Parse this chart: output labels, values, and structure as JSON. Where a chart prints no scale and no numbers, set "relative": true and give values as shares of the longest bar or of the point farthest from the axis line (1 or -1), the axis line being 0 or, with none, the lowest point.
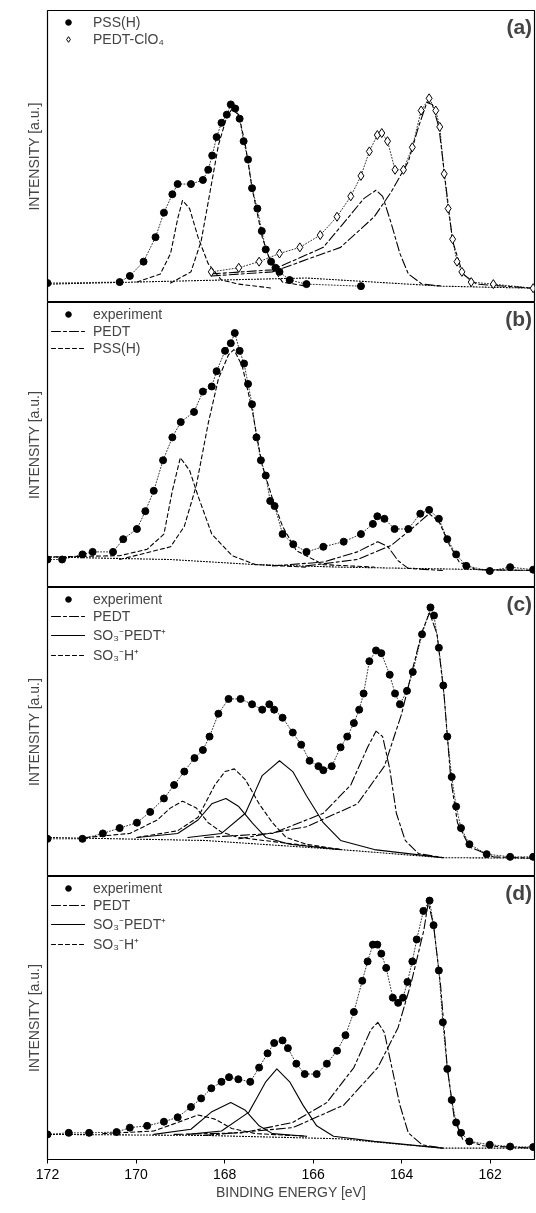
{
  "chart_data": [
    {
      "type": "line",
      "title": "(a)",
      "ylabel": "INTENSITY [a.u.]",
      "relative": true,
      "xlim": [
        172,
        161.0
      ],
      "tick_labels": false,
      "legend": "top left",
      "series": [
        {
          "name": "PSS(H)",
          "color": "#000000",
          "marker": "circle",
          "line_style": "dotted",
          "x": [
            172.0,
            170.37,
            170.14,
            169.83,
            169.56,
            169.37,
            169.18,
            169.06,
            168.76,
            168.49,
            168.37,
            168.28,
            168.18,
            168.07,
            167.95,
            167.86,
            167.76,
            167.66,
            167.57,
            167.47,
            167.38,
            167.26,
            167.16,
            167.07,
            166.95,
            166.85,
            166.76,
            166.53,
            166.15,
            164.92
          ],
          "values": [
            0.095,
            0.1,
            0.13,
            0.2,
            0.32,
            0.44,
            0.53,
            0.58,
            0.58,
            0.6,
            0.65,
            0.72,
            0.81,
            0.88,
            0.92,
            0.97,
            0.95,
            0.9,
            0.79,
            0.7,
            0.56,
            0.46,
            0.35,
            0.26,
            0.2,
            0.17,
            0.15,
            0.11,
            0.09,
            0.08
          ]
        },
        {
          "name": "PEDT-ClO₄",
          "color": "#000000",
          "marker": "diamond",
          "line_style": "dotted",
          "x": [
            168.3,
            167.68,
            167.22,
            166.76,
            166.3,
            165.84,
            165.46,
            165.15,
            164.92,
            164.73,
            164.55,
            164.45,
            164.32,
            164.15,
            163.96,
            163.76,
            163.56,
            163.38,
            163.23,
            163.14,
            163.04,
            162.95,
            162.85,
            162.75,
            162.64,
            162.43,
            161.93,
            161.03
          ],
          "values": [
            0.15,
            0.17,
            0.2,
            0.24,
            0.27,
            0.33,
            0.42,
            0.52,
            0.62,
            0.74,
            0.82,
            0.83,
            0.79,
            0.65,
            0.65,
            0.76,
            0.94,
            1.0,
            0.94,
            0.86,
            0.63,
            0.46,
            0.31,
            0.2,
            0.15,
            0.1,
            0.09,
            0.07
          ]
        },
        {
          "color": "#000000",
          "marker": "none",
          "line_style": "dashed",
          "x": [
            169.98,
            169.45,
            169.22,
            169.06,
            168.95,
            168.79,
            168.6,
            168.37,
            168.07,
            167.68,
            166.92
          ],
          "values": [
            0.1,
            0.14,
            0.24,
            0.41,
            0.5,
            0.46,
            0.32,
            0.19,
            0.11,
            0.09,
            0.07
          ]
        },
        {
          "color": "#000000",
          "marker": "none",
          "line_style": "dashed",
          "x": [
            169.22,
            168.76,
            168.53,
            168.33,
            168.14,
            167.95,
            167.84,
            167.68,
            167.53,
            167.38,
            167.15,
            166.92,
            166.69,
            166.15
          ],
          "values": [
            0.095,
            0.15,
            0.3,
            0.54,
            0.77,
            0.91,
            0.945,
            0.92,
            0.77,
            0.56,
            0.32,
            0.17,
            0.1,
            0.08
          ]
        },
        {
          "color": "#000000",
          "marker": "none",
          "line_style": "dashdot",
          "x": [
            168.3,
            166.92,
            165.77,
            165.23,
            164.85,
            164.58,
            164.43,
            164.24,
            164.04,
            163.85,
            163.54,
            163.08
          ],
          "values": [
            0.14,
            0.16,
            0.27,
            0.41,
            0.51,
            0.55,
            0.52,
            0.39,
            0.24,
            0.14,
            0.09,
            0.08
          ]
        },
        {
          "color": "#000000",
          "marker": "none",
          "line_style": "dashdot",
          "x": [
            168.3,
            166.92,
            165.38,
            164.62,
            164.24,
            163.85,
            163.62,
            163.43,
            163.31,
            163.16,
            163.0,
            162.85,
            162.62,
            162.31,
            161.03
          ],
          "values": [
            0.13,
            0.15,
            0.27,
            0.42,
            0.54,
            0.69,
            0.86,
            0.98,
            0.97,
            0.86,
            0.57,
            0.3,
            0.14,
            0.09,
            0.07
          ]
        },
        {
          "color": "#000000",
          "marker": "none",
          "line_style": "dotted",
          "x": [
            172.0,
            166.15,
            163.08,
            161.03
          ],
          "values": [
            0.09,
            0.12,
            0.08,
            0.07
          ]
        }
      ]
    },
    {
      "type": "line",
      "title": "(b)",
      "ylabel": "INTENSITY [a.u.]",
      "relative": true,
      "xlim": [
        172,
        161.0
      ],
      "tick_labels": false,
      "legend": "top left",
      "series": [
        {
          "name": "experiment",
          "color": "#000000",
          "marker": "circle",
          "line_style": "dotted",
          "x": [
            172.0,
            171.67,
            171.21,
            170.98,
            170.52,
            170.29,
            169.98,
            169.79,
            169.6,
            169.39,
            169.18,
            168.99,
            168.69,
            168.49,
            168.29,
            168.18,
            167.99,
            167.86,
            167.77,
            167.66,
            167.56,
            167.47,
            167.38,
            167.28,
            167.18,
            167.07,
            166.97,
            166.87,
            166.69,
            166.45,
            166.15,
            165.77,
            165.31,
            164.92,
            164.65,
            164.55,
            164.39,
            164.16,
            163.85,
            163.58,
            163.38,
            163.16,
            162.97,
            162.77,
            162.54,
            162.01,
            161.55,
            161.03
          ],
          "values": [
            0.11,
            0.11,
            0.13,
            0.14,
            0.14,
            0.19,
            0.23,
            0.3,
            0.38,
            0.5,
            0.59,
            0.65,
            0.69,
            0.77,
            0.79,
            0.85,
            0.93,
            0.96,
            1.0,
            0.93,
            0.88,
            0.8,
            0.72,
            0.59,
            0.5,
            0.44,
            0.34,
            0.32,
            0.21,
            0.17,
            0.14,
            0.16,
            0.18,
            0.21,
            0.25,
            0.28,
            0.27,
            0.23,
            0.23,
            0.29,
            0.305,
            0.27,
            0.19,
            0.13,
            0.085,
            0.065,
            0.08,
            0.07
          ]
        },
        {
          "name": "PEDT",
          "color": "#000000",
          "marker": "none",
          "line_style": "dashdot",
          "x": [
            166.92,
            165.77,
            165.0,
            164.54,
            164.31,
            164.08,
            163.85,
            163.08
          ],
          "values": [
            0.085,
            0.1,
            0.14,
            0.18,
            0.16,
            0.105,
            0.075,
            0.067
          ]
        },
        {
          "name": "PSS(H)",
          "color": "#000000",
          "marker": "none",
          "line_style": "dashed",
          "x": [
            172.0,
            170.37,
            169.75,
            169.37,
            169.18,
            169.0,
            168.79,
            168.6,
            168.29,
            167.83,
            167.3,
            166.15
          ],
          "values": [
            0.12,
            0.125,
            0.15,
            0.21,
            0.38,
            0.51,
            0.46,
            0.36,
            0.21,
            0.125,
            0.09,
            0.08
          ]
        },
        {
          "color": "#000000",
          "marker": "none",
          "line_style": "dashed",
          "x": [
            170.37,
            169.22,
            168.91,
            168.64,
            168.37,
            168.14,
            167.91,
            167.79,
            167.6,
            167.38,
            167.15,
            166.92,
            166.69,
            166.38,
            165.77,
            164.62
          ],
          "values": [
            0.11,
            0.16,
            0.24,
            0.4,
            0.645,
            0.82,
            0.915,
            0.935,
            0.87,
            0.7,
            0.48,
            0.35,
            0.24,
            0.145,
            0.09,
            0.08
          ]
        },
        {
          "color": "#000000",
          "marker": "none",
          "line_style": "dashdot",
          "x": [
            166.15,
            165.0,
            164.24,
            163.78,
            163.38,
            163.16,
            162.93,
            162.7,
            162.31,
            161.03
          ],
          "values": [
            0.085,
            0.11,
            0.165,
            0.23,
            0.29,
            0.26,
            0.17,
            0.1,
            0.07,
            0.067
          ]
        },
        {
          "color": "#000000",
          "marker": "none",
          "line_style": "dotted",
          "x": [
            172.0,
            169.22,
            167.3,
            165.38,
            161.03
          ],
          "values": [
            0.12,
            0.11,
            0.09,
            0.08,
            0.067
          ]
        }
      ]
    },
    {
      "type": "line",
      "title": "(c)",
      "ylabel": "INTENSITY [a.u.]",
      "relative": true,
      "xlim": [
        172,
        161.0
      ],
      "tick_labels": false,
      "legend": "top left",
      "series": [
        {
          "name": "experiment",
          "color": "#000000",
          "marker": "circle",
          "line_style": "dotted",
          "x": [
            172.0,
            171.21,
            170.75,
            170.37,
            169.98,
            169.68,
            169.37,
            169.14,
            168.91,
            168.68,
            168.49,
            168.34,
            168.14,
            167.91,
            167.64,
            167.38,
            167.15,
            166.99,
            166.88,
            166.69,
            166.46,
            166.27,
            166.08,
            165.88,
            165.77,
            165.58,
            165.38,
            165.23,
            165.08,
            164.96,
            164.86,
            164.73,
            164.58,
            164.46,
            164.27,
            164.15,
            164.04,
            163.88,
            163.75,
            163.54,
            163.35,
            163.27,
            163.16,
            163.06,
            162.97,
            162.87,
            162.77,
            162.66,
            162.47,
            162.08,
            161.55,
            161.03
          ],
          "values": [
            0.14,
            0.14,
            0.16,
            0.18,
            0.2,
            0.24,
            0.29,
            0.34,
            0.39,
            0.44,
            0.47,
            0.52,
            0.605,
            0.66,
            0.66,
            0.64,
            0.62,
            0.64,
            0.62,
            0.59,
            0.535,
            0.49,
            0.43,
            0.41,
            0.395,
            0.41,
            0.48,
            0.52,
            0.57,
            0.62,
            0.68,
            0.8,
            0.84,
            0.83,
            0.75,
            0.68,
            0.64,
            0.69,
            0.76,
            0.9,
            1.0,
            0.97,
            0.85,
            0.71,
            0.52,
            0.37,
            0.26,
            0.18,
            0.12,
            0.083,
            0.073,
            0.073
          ]
        },
        {
          "name": "PEDT",
          "color": "#000000",
          "marker": "none",
          "line_style": "dashdot",
          "x": [
            168.45,
            166.92,
            165.77,
            165.15,
            164.77,
            164.58,
            164.43,
            164.27,
            164.12,
            163.92,
            163.62,
            163.08
          ],
          "values": [
            0.145,
            0.16,
            0.235,
            0.34,
            0.48,
            0.54,
            0.52,
            0.4,
            0.235,
            0.134,
            0.085,
            0.07
          ]
        },
        {
          "name": "SO₃⁻PEDT⁺",
          "color": "#000000",
          "marker": "none",
          "line_style": "solid",
          "x": [
            169.98,
            169.06,
            168.6,
            168.29,
            167.97,
            167.68,
            167.38,
            167.07,
            166.53,
            165.38
          ],
          "values": [
            0.145,
            0.16,
            0.21,
            0.27,
            0.29,
            0.26,
            0.2,
            0.145,
            0.12,
            0.1
          ]
        },
        {
          "name": "SO₃⁻H⁺",
          "color": "#000000",
          "marker": "none",
          "line_style": "dashed",
          "x": [
            171.13,
            170.14,
            169.52,
            169.22,
            168.95,
            168.64,
            168.37,
            168.07,
            167.68,
            166.92,
            165.38
          ],
          "values": [
            0.145,
            0.16,
            0.21,
            0.255,
            0.28,
            0.255,
            0.2,
            0.165,
            0.145,
            0.13,
            0.1
          ]
        },
        {
          "color": "#000000",
          "marker": "none",
          "line_style": "dashed",
          "x": [
            169.98,
            169.06,
            168.6,
            168.22,
            167.99,
            167.78,
            167.53,
            167.22,
            166.92,
            166.61,
            166.15,
            165.38
          ],
          "values": [
            0.145,
            0.17,
            0.22,
            0.34,
            0.39,
            0.4,
            0.36,
            0.27,
            0.2,
            0.145,
            0.12,
            0.1
          ]
        },
        {
          "color": "#000000",
          "marker": "none",
          "line_style": "solid",
          "x": [
            168.83,
            168.07,
            167.53,
            167.15,
            166.76,
            166.46,
            166.15,
            165.77,
            165.38,
            164.62,
            163.08
          ],
          "values": [
            0.145,
            0.16,
            0.235,
            0.375,
            0.43,
            0.39,
            0.3,
            0.2,
            0.134,
            0.1,
            0.07
          ]
        },
        {
          "color": "#000000",
          "marker": "none",
          "line_style": "dashdot",
          "x": [
            167.68,
            166.15,
            165.0,
            164.39,
            164.0,
            163.77,
            163.54,
            163.37,
            163.2,
            163.04,
            162.89,
            162.74,
            162.47,
            161.93,
            161.03
          ],
          "values": [
            0.14,
            0.185,
            0.27,
            0.41,
            0.605,
            0.76,
            0.91,
            0.98,
            0.9,
            0.67,
            0.36,
            0.2,
            0.11,
            0.073,
            0.068
          ]
        },
        {
          "color": "#000000",
          "marker": "none",
          "line_style": "dotted",
          "x": [
            172.0,
            168.45,
            165.38,
            163.08,
            161.03
          ],
          "values": [
            0.145,
            0.134,
            0.1,
            0.07,
            0.068
          ]
        }
      ]
    },
    {
      "type": "line",
      "title": "(d)",
      "ylabel": "INTENSITY [a.u.]",
      "xlabel": "BINDING ENERGY [eV]",
      "relative": true,
      "xlim": [
        172,
        161.0
      ],
      "xticks": [
        172,
        170,
        168,
        166,
        164,
        162
      ],
      "tick_labels": "x",
      "legend": "top left",
      "series": [
        {
          "name": "experiment",
          "color": "#000000",
          "marker": "circle",
          "line_style": "dotted",
          "x": [
            172.0,
            171.52,
            171.06,
            170.44,
            170.14,
            169.75,
            169.37,
            169.06,
            168.76,
            168.53,
            168.3,
            168.07,
            167.9,
            167.69,
            167.42,
            167.22,
            167.03,
            166.88,
            166.69,
            166.57,
            166.38,
            166.19,
            165.92,
            165.69,
            165.46,
            165.27,
            165.08,
            164.89,
            164.77,
            164.65,
            164.55,
            164.46,
            164.35,
            164.2,
            164.08,
            163.97,
            163.87,
            163.76,
            163.66,
            163.51,
            163.37,
            163.28,
            163.16,
            163.07,
            162.97,
            162.87,
            162.77,
            162.66,
            162.47,
            162.01,
            161.55,
            161.03
          ],
          "values": [
            0.097,
            0.103,
            0.103,
            0.106,
            0.123,
            0.13,
            0.146,
            0.163,
            0.203,
            0.236,
            0.275,
            0.3,
            0.318,
            0.31,
            0.3,
            0.355,
            0.41,
            0.45,
            0.46,
            0.43,
            0.37,
            0.33,
            0.33,
            0.37,
            0.42,
            0.48,
            0.57,
            0.69,
            0.765,
            0.83,
            0.83,
            0.795,
            0.74,
            0.625,
            0.605,
            0.625,
            0.686,
            0.765,
            0.85,
            0.96,
            1.0,
            0.905,
            0.73,
            0.53,
            0.35,
            0.23,
            0.143,
            0.103,
            0.07,
            0.057,
            0.05,
            0.048
          ]
        },
        {
          "name": "PEDT",
          "color": "#000000",
          "marker": "none",
          "line_style": "dashdot",
          "x": [
            169.14,
            167.61,
            166.46,
            165.69,
            165.08,
            164.7,
            164.54,
            164.39,
            164.24,
            164.04,
            163.85,
            163.54,
            163.08
          ],
          "values": [
            0.097,
            0.103,
            0.143,
            0.22,
            0.355,
            0.5,
            0.53,
            0.49,
            0.37,
            0.21,
            0.103,
            0.057,
            0.044
          ]
        },
        {
          "name": "SO₃⁻PEDT⁺",
          "color": "#000000",
          "marker": "none",
          "line_style": "solid",
          "x": [
            169.6,
            168.76,
            168.3,
            167.86,
            167.53,
            167.22,
            166.92,
            166.15
          ],
          "values": [
            0.097,
            0.117,
            0.183,
            0.22,
            0.19,
            0.13,
            0.1,
            0.09
          ]
        },
        {
          "name": "SO₃⁻H⁺",
          "color": "#000000",
          "marker": "none",
          "line_style": "dashed",
          "x": [
            170.75,
            169.6,
            169.06,
            168.6,
            168.22,
            167.84,
            167.3,
            166.15
          ],
          "values": [
            0.1,
            0.11,
            0.143,
            0.172,
            0.156,
            0.12,
            0.1,
            0.09
          ]
        },
        {
          "color": "#000000",
          "marker": "none",
          "line_style": "solid",
          "x": [
            168.83,
            168.07,
            167.45,
            167.07,
            166.82,
            166.53,
            166.23,
            165.92,
            165.54,
            164.62,
            163.08
          ],
          "values": [
            0.097,
            0.11,
            0.183,
            0.3,
            0.35,
            0.3,
            0.21,
            0.13,
            0.09,
            0.07,
            0.044
          ]
        },
        {
          "color": "#000000",
          "marker": "none",
          "line_style": "dashdot",
          "x": [
            168.45,
            166.46,
            165.31,
            164.54,
            164.08,
            163.78,
            163.5,
            163.4,
            163.28,
            163.12,
            162.97,
            162.81,
            162.62,
            162.16,
            161.03
          ],
          "values": [
            0.093,
            0.123,
            0.21,
            0.355,
            0.51,
            0.686,
            0.885,
            0.993,
            0.905,
            0.67,
            0.355,
            0.156,
            0.077,
            0.053,
            0.044
          ]
        },
        {
          "color": "#000000",
          "marker": "none",
          "line_style": "dotted",
          "x": [
            172.0,
            168.45,
            165.38,
            163.08,
            161.03
          ],
          "values": [
            0.097,
            0.093,
            0.08,
            0.044,
            0.044
          ]
        }
      ]
    }
  ]
}
